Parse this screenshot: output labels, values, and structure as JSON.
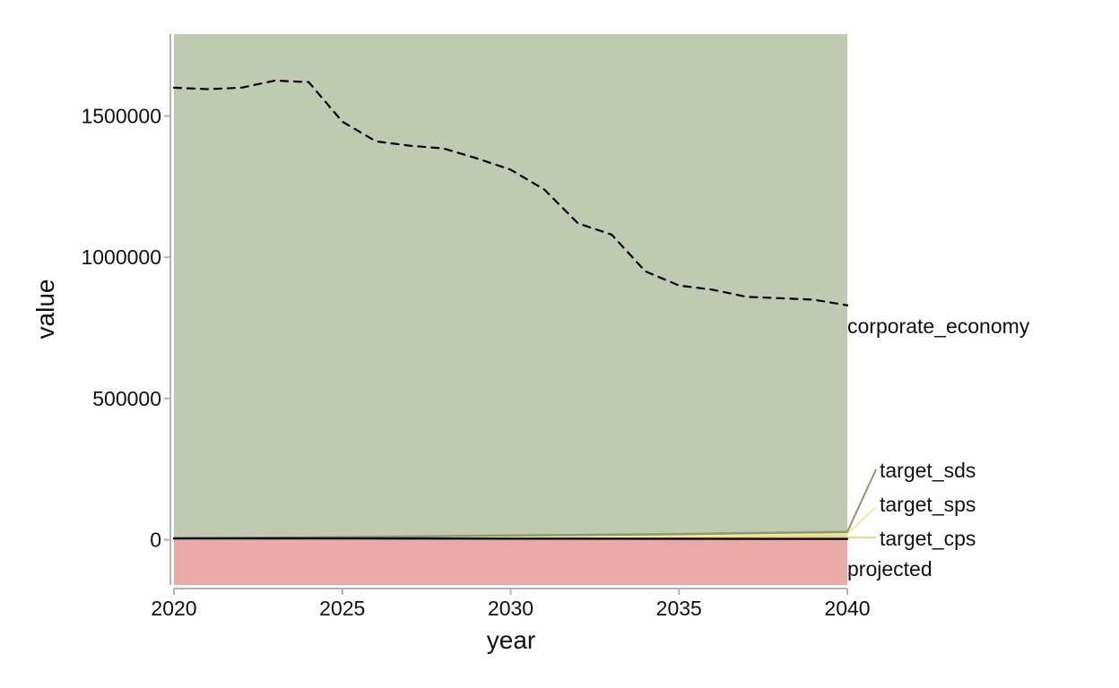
{
  "chart_data": {
    "type": "area",
    "xlabel": "year",
    "ylabel": "value",
    "xlim": [
      2020,
      2040
    ],
    "ylim": [
      -160000,
      1790000
    ],
    "x_ticks": [
      2020,
      2025,
      2030,
      2035,
      2040
    ],
    "y_ticks": [
      0,
      500000,
      1000000,
      1500000
    ],
    "grid": false,
    "colors": {
      "green_band": "#c0cab0",
      "red_band": "#e9aaa8",
      "target_sds": "#8a9a72",
      "target_sps": "#f4ec9c",
      "target_cps": "#f3d67a",
      "projected": "#000000",
      "corporate_economy": "#000000",
      "axis": "#b3b3b3"
    },
    "bands": [
      {
        "name": "red_band",
        "from": -160000,
        "to": 0
      },
      {
        "name": "green_band",
        "from": 0,
        "to": 1790000
      }
    ],
    "series": [
      {
        "name": "corporate_economy",
        "style": "dashed",
        "x": [
          2020,
          2021,
          2022,
          2023,
          2024,
          2025,
          2026,
          2027,
          2028,
          2029,
          2030,
          2031,
          2032,
          2033,
          2034,
          2035,
          2036,
          2037,
          2038,
          2039,
          2040
        ],
        "values": [
          1600000,
          1595000,
          1600000,
          1625000,
          1620000,
          1480000,
          1410000,
          1395000,
          1385000,
          1350000,
          1310000,
          1240000,
          1120000,
          1080000,
          950000,
          900000,
          885000,
          860000,
          855000,
          850000,
          830000
        ]
      },
      {
        "name": "projected",
        "style": "solid",
        "x": [
          2020,
          2025,
          2030,
          2035,
          2040
        ],
        "values": [
          5000,
          5000,
          4000,
          3500,
          3000
        ]
      },
      {
        "name": "target_sds",
        "style": "solid",
        "x": [
          2020,
          2025,
          2030,
          2035,
          2040
        ],
        "values": [
          5000,
          9000,
          15000,
          20000,
          28000
        ]
      },
      {
        "name": "target_sps",
        "style": "solid",
        "x": [
          2020,
          2025,
          2030,
          2035,
          2040
        ],
        "values": [
          5000,
          7000,
          10000,
          14000,
          20000
        ]
      },
      {
        "name": "target_cps",
        "style": "solid",
        "x": [
          2020,
          2025,
          2030,
          2035,
          2040
        ],
        "values": [
          5000,
          6000,
          7000,
          8000,
          9000
        ]
      }
    ],
    "end_labels": [
      "corporate_economy",
      "target_sds",
      "target_sps",
      "target_cps",
      "projected"
    ]
  }
}
